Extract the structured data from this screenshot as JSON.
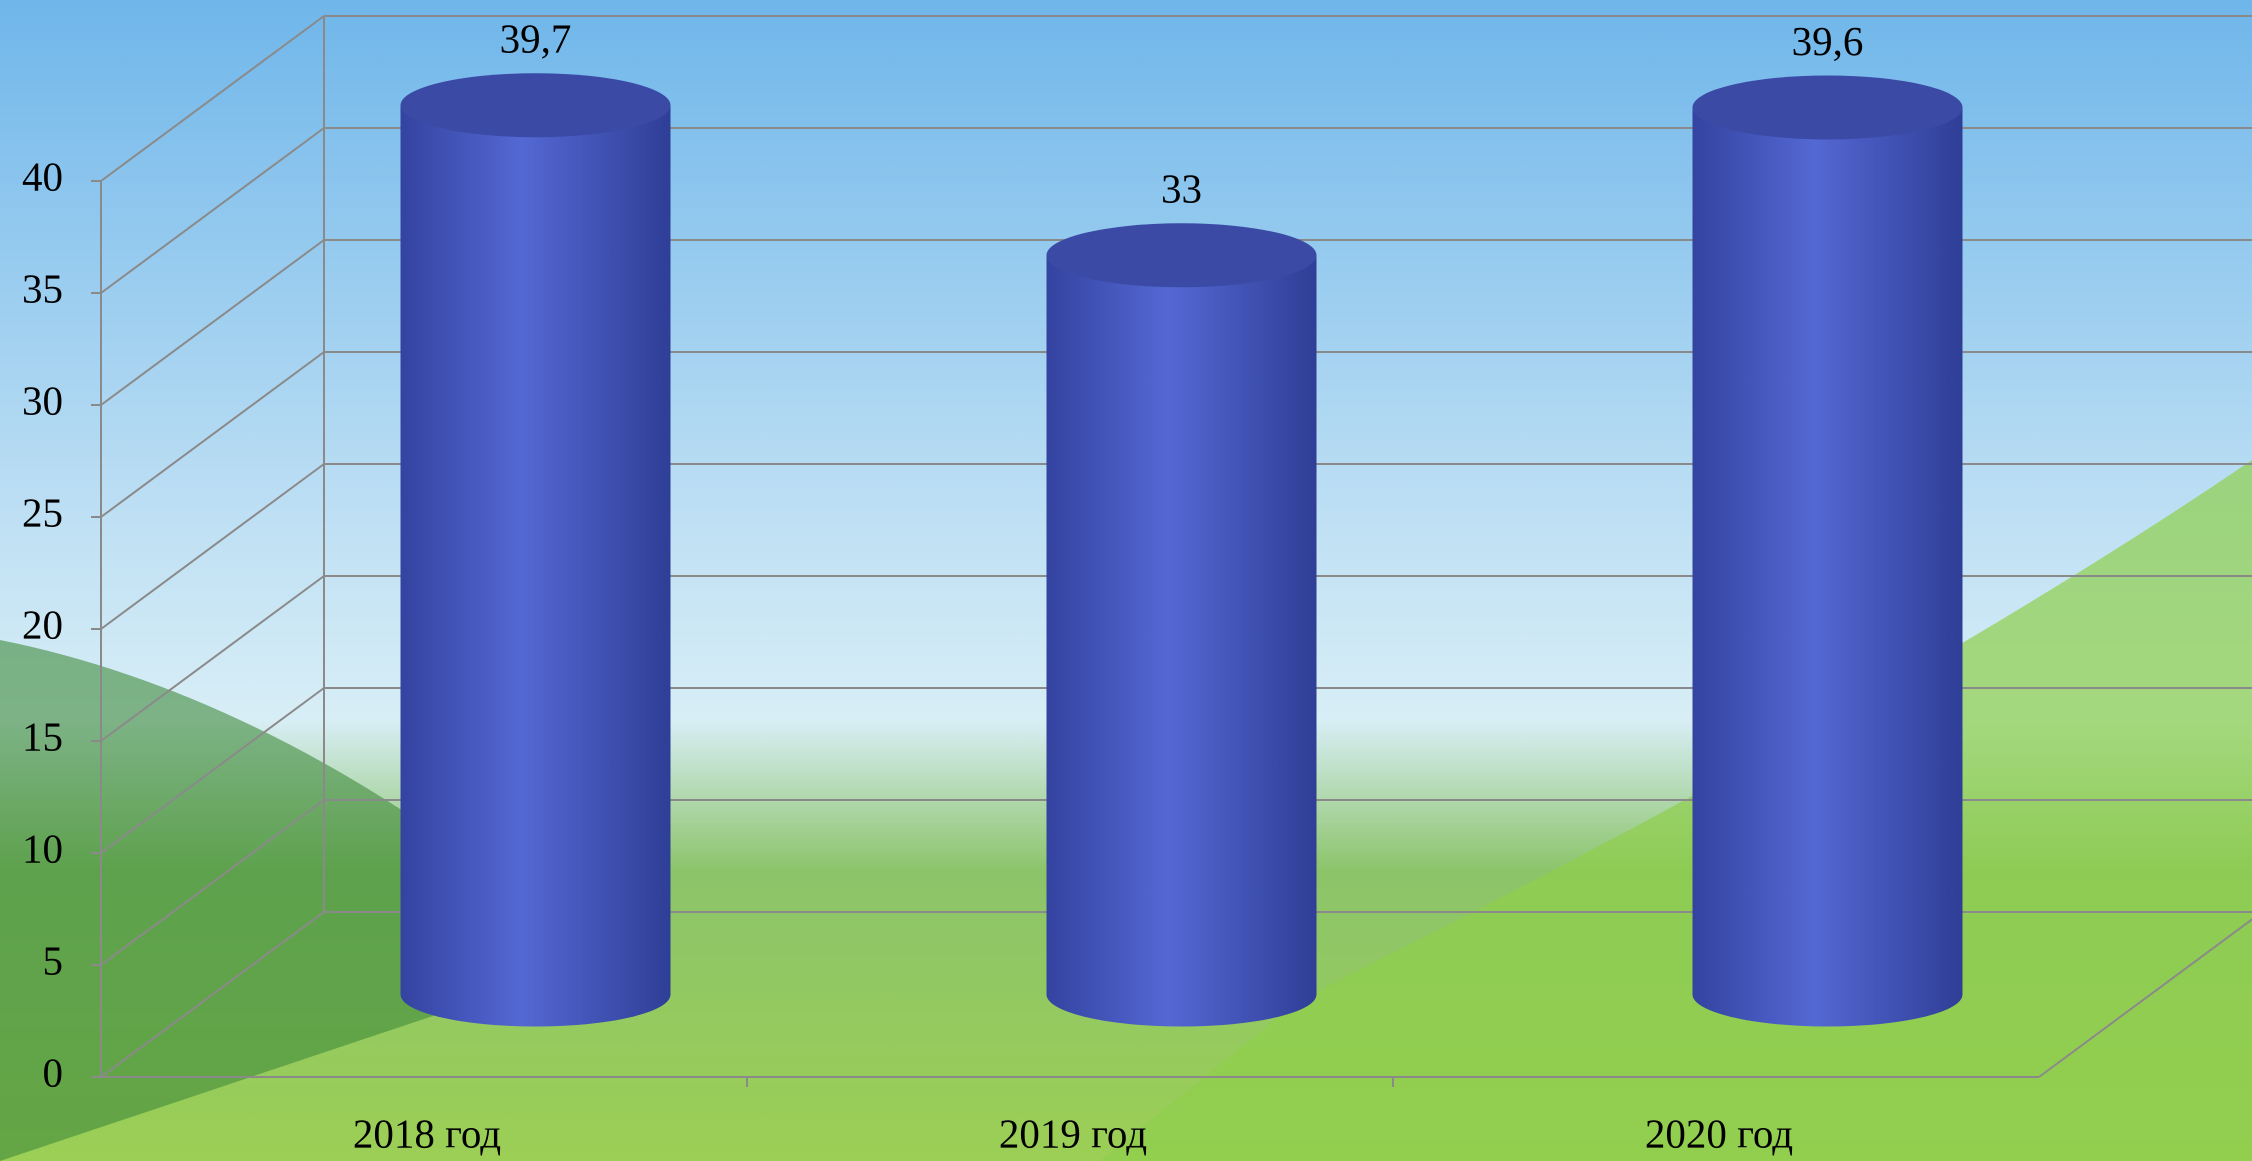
{
  "chart_data": {
    "type": "bar3d",
    "categories": [
      "2018 год",
      "2019 год",
      "2020 год"
    ],
    "values": [
      39.7,
      33,
      39.6
    ],
    "value_labels": [
      "39,7",
      "33",
      "39,6"
    ],
    "color": "#4f63cc",
    "ylim": [
      0,
      40
    ],
    "yticks": [
      0,
      5,
      10,
      15,
      20,
      25,
      30,
      35,
      40
    ],
    "grid": true
  }
}
